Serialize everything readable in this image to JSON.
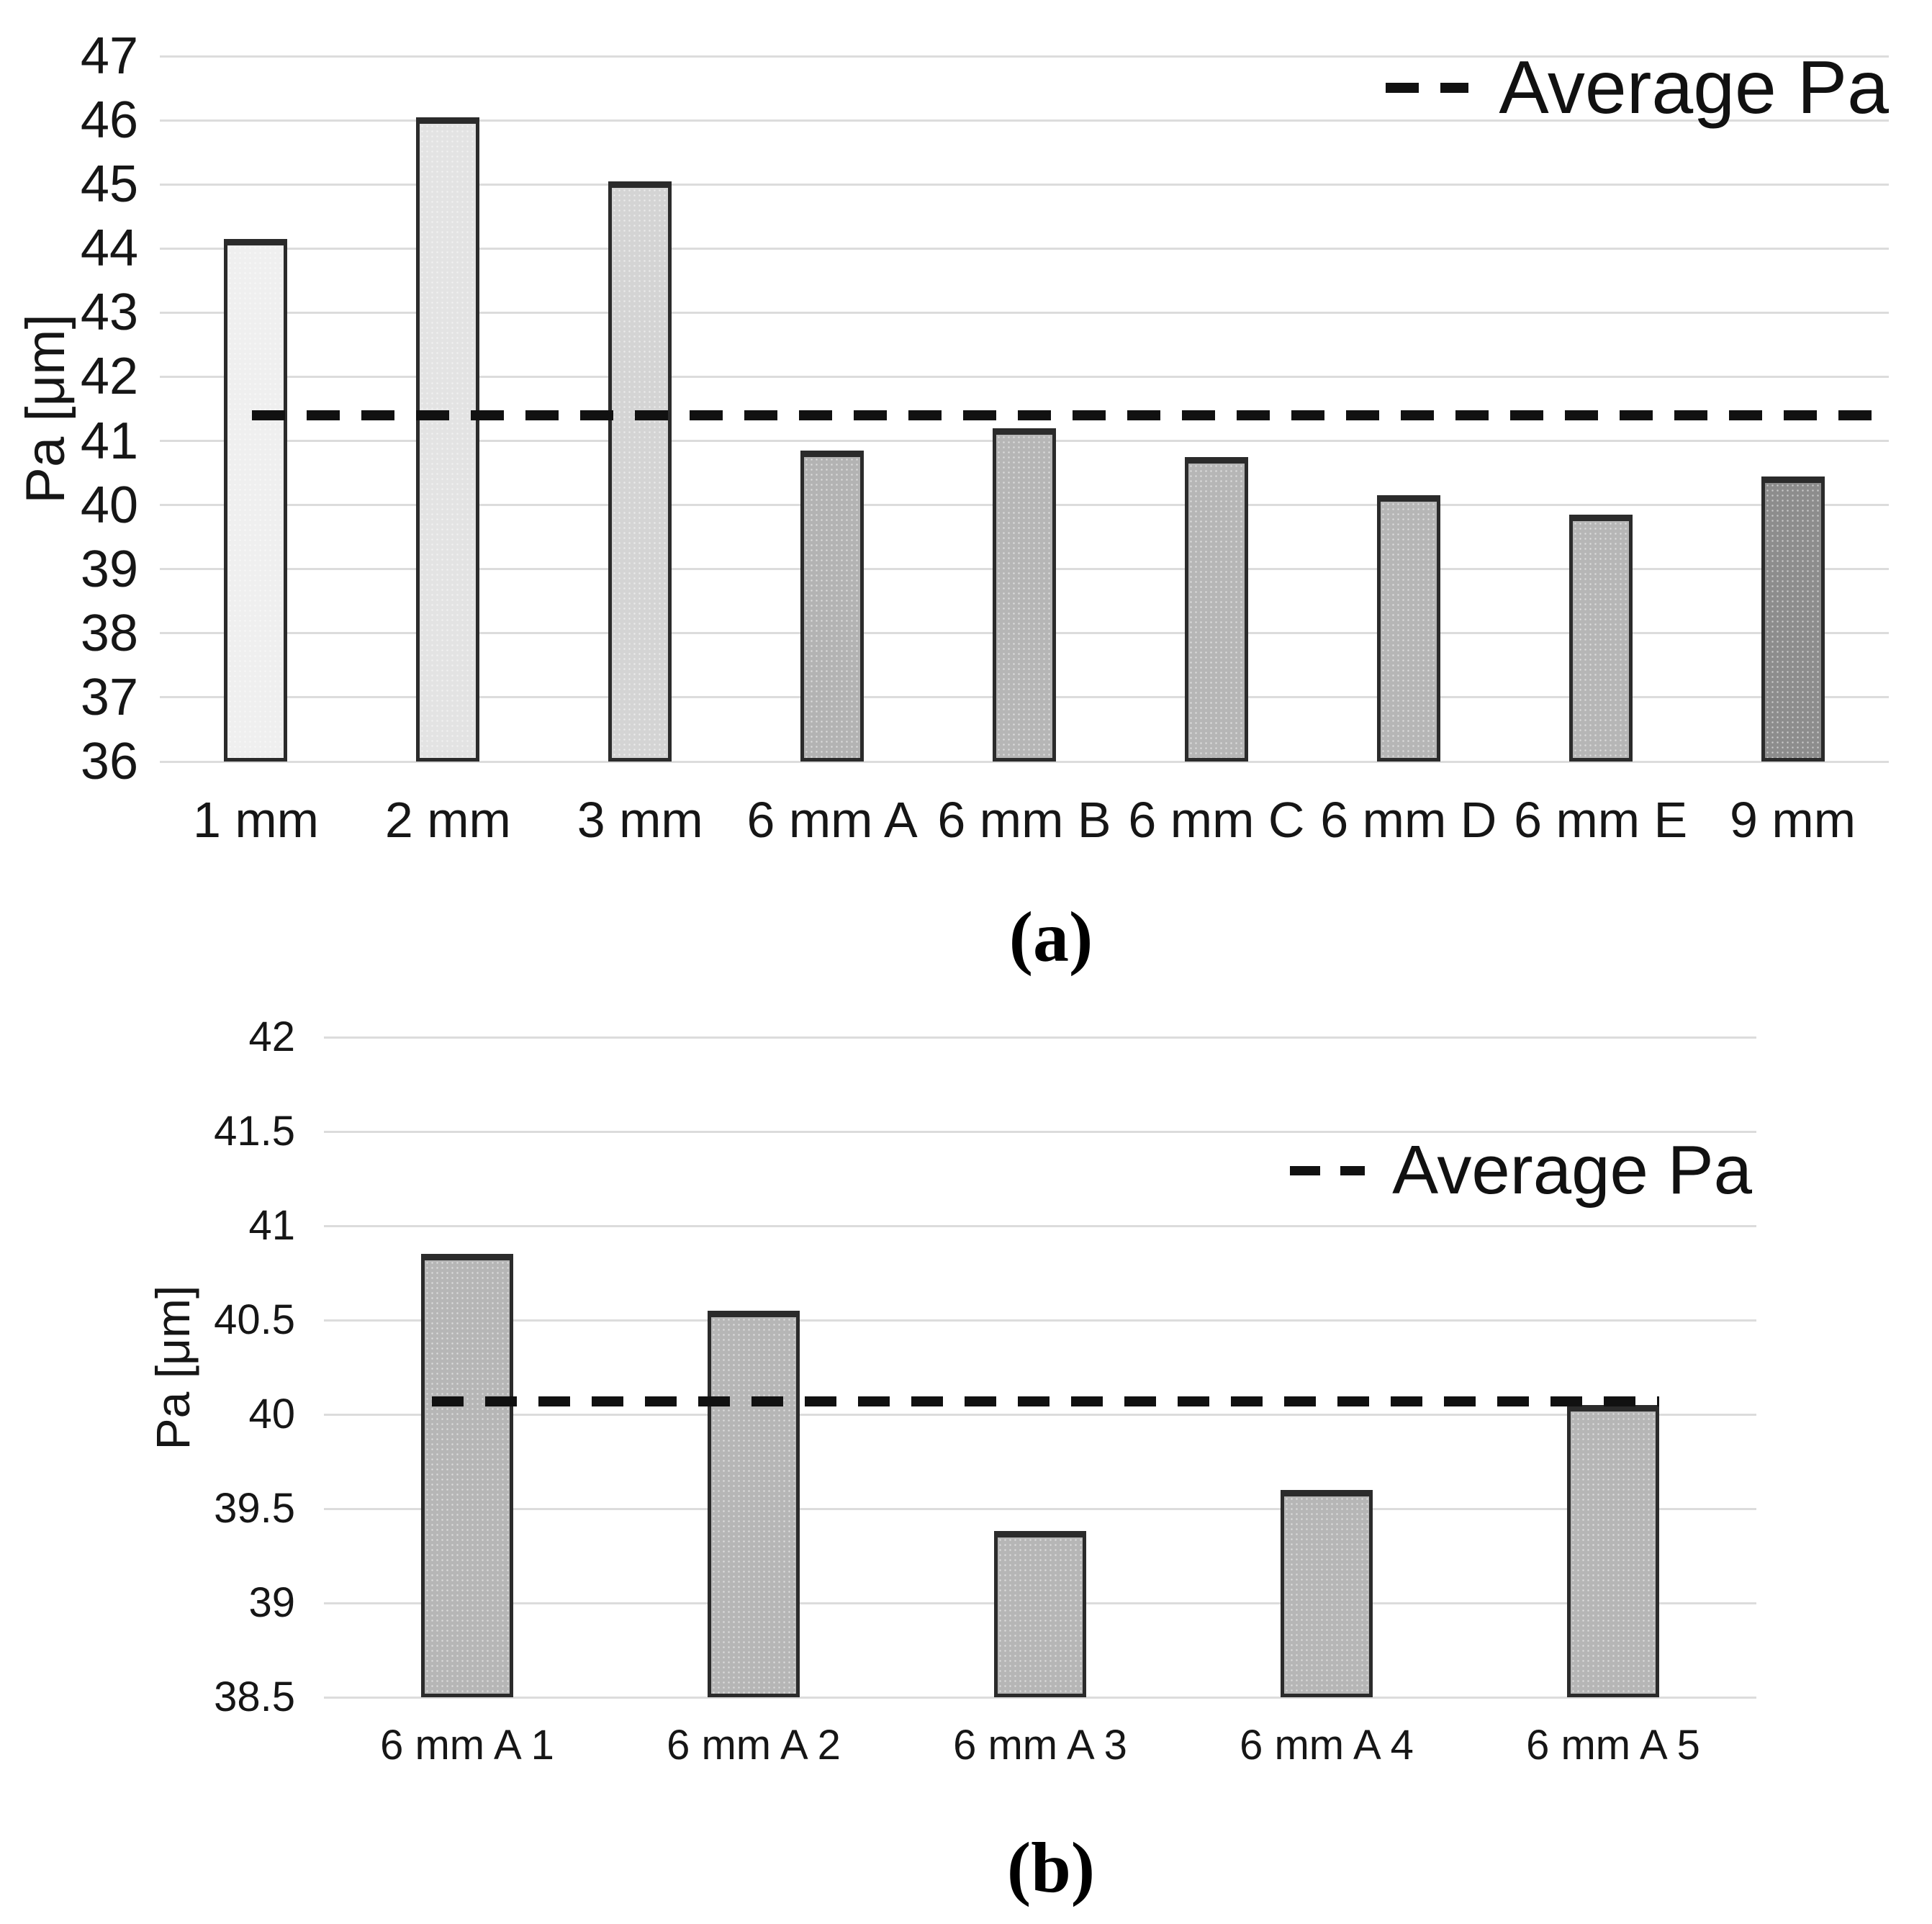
{
  "captions": {
    "a": "(a)",
    "b": "(b)"
  },
  "colors": {
    "grid": "#dcdcdc",
    "bar_border": "#2b2b2b",
    "average_line": "#111111",
    "text": "#161616"
  },
  "chart_data": [
    {
      "id": "a",
      "type": "bar",
      "title": "",
      "xlabel": "",
      "ylabel": "Pa [μm]",
      "categories": [
        "1 mm",
        "2 mm",
        "3 mm",
        "6 mm A",
        "6 mm B",
        "6 mm C",
        "6 mm D",
        "6 mm E",
        "9 mm"
      ],
      "values": [
        44.15,
        46.05,
        45.05,
        40.85,
        41.2,
        40.75,
        40.15,
        39.85,
        40.45
      ],
      "bar_colors": [
        "#efefef",
        "#e3e3e3",
        "#d4d4d4",
        "#b3b3b3",
        "#b6b6b6",
        "#b6b6b6",
        "#b6b6b6",
        "#b6b6b6",
        "#8d8d8d"
      ],
      "average_line": {
        "legend_label": "Average Pa",
        "value": 41.4,
        "style": "dashed"
      },
      "ylim": [
        36,
        47
      ],
      "ytick_step": 1,
      "yticks": [
        "47",
        "46",
        "45",
        "44",
        "43",
        "42",
        "41",
        "40",
        "39",
        "38",
        "37",
        "36"
      ],
      "grid": true,
      "legend_position": "top-right"
    },
    {
      "id": "b",
      "type": "bar",
      "title": "",
      "xlabel": "",
      "ylabel": "Pa [μm]",
      "categories": [
        "6 mm A 1",
        "6 mm A 2",
        "6 mm A 3",
        "6 mm A 4",
        "6 mm A 5"
      ],
      "values": [
        40.85,
        40.55,
        39.38,
        39.6,
        40.05
      ],
      "bar_colors": [
        "#b6b6b6",
        "#b6b6b6",
        "#b6b6b6",
        "#b6b6b6",
        "#b6b6b6"
      ],
      "average_line": {
        "legend_label": "Average Pa",
        "value": 40.07,
        "style": "dashed"
      },
      "ylim": [
        38.5,
        42
      ],
      "ytick_step": 0.5,
      "yticks": [
        "42",
        "41.5",
        "41",
        "40.5",
        "40",
        "39.5",
        "39",
        "38.5"
      ],
      "grid": true,
      "legend_position": "top-right"
    }
  ]
}
